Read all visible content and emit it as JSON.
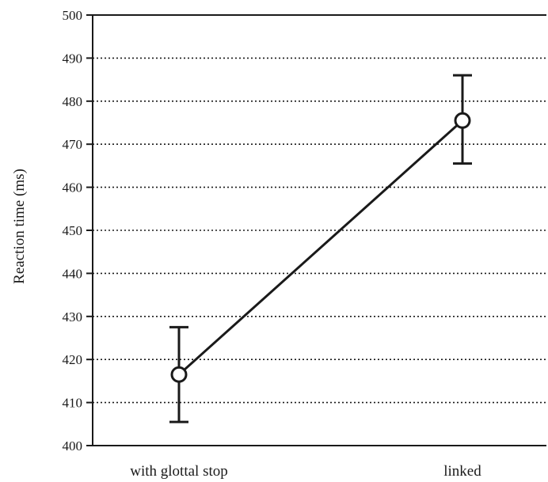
{
  "chart_data": {
    "type": "line",
    "title": "",
    "xlabel": "",
    "ylabel": "Reaction time (ms)",
    "categories": [
      "with glottal stop",
      "linked"
    ],
    "series": [
      {
        "values": [
          416.5,
          475.5
        ],
        "error_low": [
          405.5,
          465.5
        ],
        "error_high": [
          427.5,
          486
        ]
      }
    ],
    "ylim": [
      400,
      500
    ],
    "yticks": [
      400,
      410,
      420,
      430,
      440,
      450,
      460,
      470,
      480,
      490,
      500
    ],
    "grid": "horizontal dotted",
    "colors": {
      "line": "#1a1a1a",
      "marker_fill": "#ffffff",
      "grid": "#1a1a1a"
    }
  }
}
